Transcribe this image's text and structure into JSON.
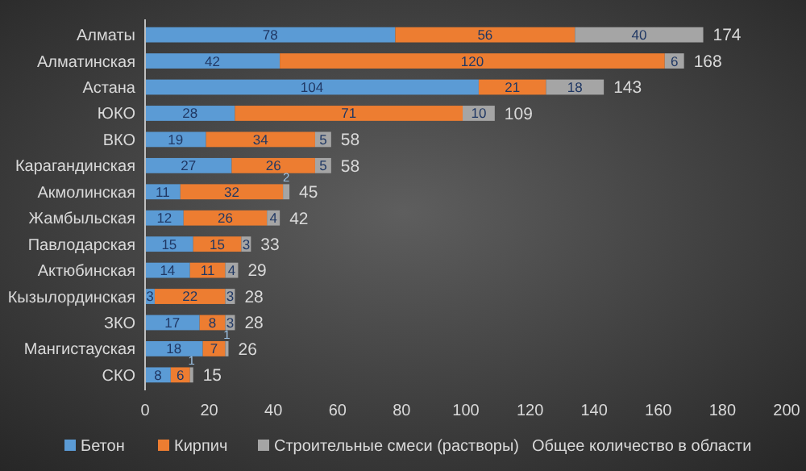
{
  "chart_data": {
    "type": "bar",
    "orientation": "horizontal",
    "stacked": true,
    "categories": [
      "Алматы",
      "Алматинская",
      "Астана",
      "ЮКО",
      "ВКО",
      "Карагандинская",
      "Акмолинская",
      "Жамбыльская",
      "Павлодарская",
      "Актюбинская",
      "Кызылординская",
      "ЗКО",
      "Мангистауская",
      "СКО"
    ],
    "series": [
      {
        "name": "Бетон",
        "color": "#5b9bd5",
        "values": [
          78,
          42,
          104,
          28,
          19,
          27,
          11,
          12,
          15,
          14,
          3,
          17,
          18,
          8
        ]
      },
      {
        "name": "Кирпич",
        "color": "#ed7d31",
        "values": [
          56,
          120,
          21,
          71,
          34,
          26,
          32,
          26,
          15,
          11,
          22,
          8,
          7,
          6
        ]
      },
      {
        "name": "Строительные смеси (растворы)",
        "color": "#a5a5a5",
        "values": [
          40,
          6,
          18,
          10,
          5,
          5,
          2,
          4,
          3,
          4,
          3,
          3,
          1,
          1
        ]
      }
    ],
    "totals": [
      "174",
      "168",
      "143",
      "109",
      "58",
      "58",
      "45",
      "42",
      "33",
      "29",
      "28",
      "28",
      "26",
      "15"
    ],
    "annotations": [
      "Общее количество в области"
    ],
    "xlim": [
      0,
      200
    ],
    "xticks": [
      0,
      20,
      40,
      60,
      80,
      100,
      120,
      140,
      160,
      180,
      200
    ],
    "data_labels": true,
    "legend": "bottom",
    "grid": false
  }
}
